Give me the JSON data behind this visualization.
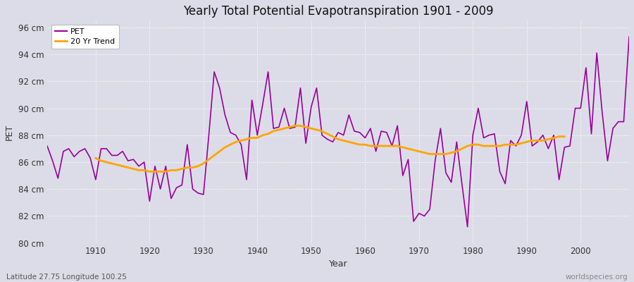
{
  "title": "Yearly Total Potential Evapotranspiration 1901 - 2009",
  "xlabel": "Year",
  "ylabel": "PET",
  "lat_lon_label": "Latitude 27.75 Longitude 100.25",
  "watermark": "worldspecies.org",
  "pet_color": "#990099",
  "trend_color": "#ffa500",
  "background_color": "#dcdce8",
  "fig_background": "#dcdce8",
  "ylim": [
    80,
    96.5
  ],
  "yticks": [
    80,
    82,
    84,
    86,
    88,
    90,
    92,
    94,
    96
  ],
  "ytick_labels": [
    "80 cm",
    "82 cm",
    "84 cm",
    "86 cm",
    "88 cm",
    "90 cm",
    "92 cm",
    "94 cm",
    "96 cm"
  ],
  "xlim": [
    1901,
    2009
  ],
  "decade_ticks": [
    1910,
    1920,
    1930,
    1940,
    1950,
    1960,
    1970,
    1980,
    1990,
    2000
  ],
  "years": [
    1901,
    1902,
    1903,
    1904,
    1905,
    1906,
    1907,
    1908,
    1909,
    1910,
    1911,
    1912,
    1913,
    1914,
    1915,
    1916,
    1917,
    1918,
    1919,
    1920,
    1921,
    1922,
    1923,
    1924,
    1925,
    1926,
    1927,
    1928,
    1929,
    1930,
    1931,
    1932,
    1933,
    1934,
    1935,
    1936,
    1937,
    1938,
    1939,
    1940,
    1941,
    1942,
    1943,
    1944,
    1945,
    1946,
    1947,
    1948,
    1949,
    1950,
    1951,
    1952,
    1953,
    1954,
    1955,
    1956,
    1957,
    1958,
    1959,
    1960,
    1961,
    1962,
    1963,
    1964,
    1965,
    1966,
    1967,
    1968,
    1969,
    1970,
    1971,
    1972,
    1973,
    1974,
    1975,
    1976,
    1977,
    1978,
    1979,
    1980,
    1981,
    1982,
    1983,
    1984,
    1985,
    1986,
    1987,
    1988,
    1989,
    1990,
    1991,
    1992,
    1993,
    1994,
    1995,
    1996,
    1997,
    1998,
    1999,
    2000,
    2001,
    2002,
    2003,
    2004,
    2005,
    2006,
    2007,
    2008,
    2009
  ],
  "pet_values": [
    87.2,
    86.1,
    84.8,
    86.8,
    87.0,
    86.4,
    86.8,
    87.0,
    86.3,
    84.7,
    87.0,
    87.0,
    86.5,
    86.5,
    86.8,
    86.1,
    86.2,
    85.7,
    86.0,
    83.1,
    85.7,
    84.0,
    85.7,
    83.3,
    84.1,
    84.3,
    87.3,
    84.0,
    83.7,
    83.6,
    88.0,
    92.7,
    91.5,
    89.5,
    88.2,
    88.0,
    87.3,
    84.7,
    90.6,
    88.0,
    90.3,
    92.7,
    88.5,
    88.6,
    90.0,
    88.5,
    88.6,
    91.5,
    87.4,
    90.1,
    91.5,
    88.0,
    87.7,
    87.5,
    88.2,
    88.0,
    89.5,
    88.3,
    88.2,
    87.8,
    88.5,
    86.8,
    88.3,
    88.2,
    87.2,
    88.7,
    85.0,
    86.2,
    81.6,
    82.2,
    82.0,
    82.5,
    86.1,
    88.5,
    85.2,
    84.5,
    87.5,
    84.3,
    81.2,
    88.0,
    90.0,
    87.8,
    88.0,
    88.1,
    85.3,
    84.4,
    87.6,
    87.2,
    88.0,
    90.5,
    87.2,
    87.5,
    88.0,
    87.0,
    88.0,
    84.7,
    87.1,
    87.2,
    90.0,
    90.0,
    93.0,
    88.1,
    94.1,
    89.7,
    86.1,
    88.5,
    89.0,
    89.0,
    95.3
  ],
  "trend_values": [
    null,
    null,
    null,
    null,
    null,
    null,
    null,
    null,
    null,
    86.3,
    86.1,
    86.0,
    85.9,
    85.8,
    85.7,
    85.6,
    85.5,
    85.4,
    85.4,
    85.3,
    85.3,
    85.3,
    85.3,
    85.4,
    85.4,
    85.5,
    85.6,
    85.6,
    85.7,
    85.9,
    86.2,
    86.5,
    86.8,
    87.1,
    87.3,
    87.5,
    87.6,
    87.7,
    87.8,
    87.8,
    88.0,
    88.1,
    88.3,
    88.4,
    88.5,
    88.6,
    88.7,
    88.7,
    88.6,
    88.5,
    88.4,
    88.3,
    88.1,
    87.9,
    87.7,
    87.6,
    87.5,
    87.4,
    87.3,
    87.3,
    87.2,
    87.2,
    87.2,
    87.2,
    87.2,
    87.2,
    87.1,
    87.0,
    86.9,
    86.8,
    86.7,
    86.6,
    86.6,
    86.6,
    86.6,
    86.7,
    86.8,
    87.0,
    87.2,
    87.3,
    87.3,
    87.2,
    87.2,
    87.2,
    87.2,
    87.3,
    87.3,
    87.3,
    87.4,
    87.5,
    87.6,
    87.6,
    87.6,
    87.7,
    87.8,
    87.9,
    87.9,
    null,
    null,
    null,
    null,
    null,
    null,
    null,
    null,
    null,
    null
  ]
}
